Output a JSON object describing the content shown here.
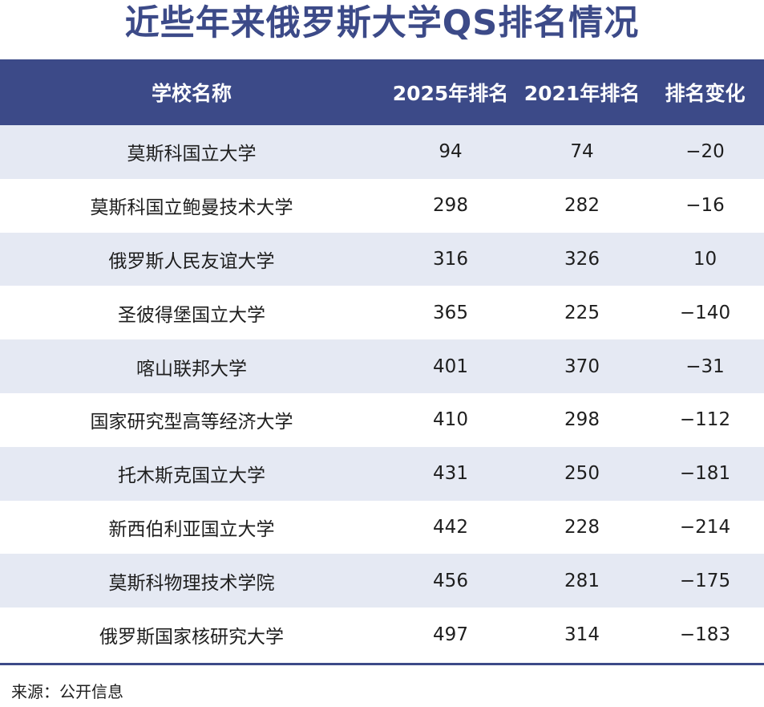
{
  "title": "近些年来俄罗斯大学QS排名情况",
  "table": {
    "columns": [
      "学校名称",
      "2025年排名",
      "2021年排名",
      "排名变化"
    ],
    "rows": [
      {
        "name": "莫斯科国立大学",
        "rank_2025": "94",
        "rank_2021": "74",
        "change": "−20"
      },
      {
        "name": "莫斯科国立鲍曼技术大学",
        "rank_2025": "298",
        "rank_2021": "282",
        "change": "−16"
      },
      {
        "name": "俄罗斯人民友谊大学",
        "rank_2025": "316",
        "rank_2021": "326",
        "change": "10"
      },
      {
        "name": "圣彼得堡国立大学",
        "rank_2025": "365",
        "rank_2021": "225",
        "change": "−140"
      },
      {
        "name": "喀山联邦大学",
        "rank_2025": "401",
        "rank_2021": "370",
        "change": "−31"
      },
      {
        "name": "国家研究型高等经济大学",
        "rank_2025": "410",
        "rank_2021": "298",
        "change": "−112"
      },
      {
        "name": "托木斯克国立大学",
        "rank_2025": "431",
        "rank_2021": "250",
        "change": "−181"
      },
      {
        "name": "新西伯利亚国立大学",
        "rank_2025": "442",
        "rank_2021": "228",
        "change": "−214"
      },
      {
        "name": "莫斯科物理技术学院",
        "rank_2025": "456",
        "rank_2021": "281",
        "change": "−175"
      },
      {
        "name": "俄罗斯国家核研究大学",
        "rank_2025": "497",
        "rank_2021": "314",
        "change": "−183"
      }
    ]
  },
  "source": "来源：公开信息",
  "colors": {
    "header_bg": "#3c4a88",
    "title_text": "#3c4a88",
    "row_shade": "#e5e9f3",
    "row_plain": "#ffffff"
  }
}
